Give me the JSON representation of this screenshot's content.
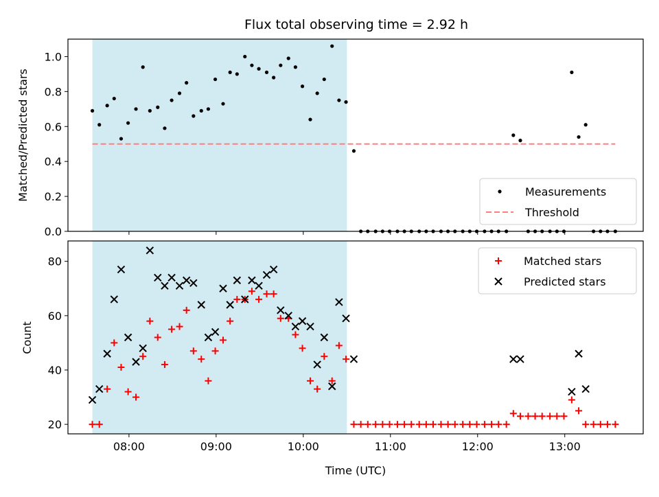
{
  "title": "Flux total observing time = 2.92 h",
  "colors": {
    "shade": "#add8e6",
    "threshold": "#ff7f7f",
    "measurement": "#000000",
    "matched": "#ff0000",
    "predicted": "#000000"
  },
  "chart_data": [
    {
      "type": "scatter",
      "panel": "top",
      "ylabel": "Matched/Predicted stars",
      "ylim": [
        0,
        1.1
      ],
      "yticks": [
        0.0,
        0.2,
        0.4,
        0.6,
        0.8,
        1.0
      ],
      "ytick_labels": [
        "0.0",
        "0.2",
        "0.4",
        "0.6",
        "0.8",
        "1.0"
      ],
      "xlim_hours": [
        7.3,
        13.9
      ],
      "shaded_span_hours": [
        7.58,
        10.5
      ],
      "threshold": {
        "name": "Threshold",
        "value": 0.5,
        "x_range_hours": [
          7.58,
          13.58
        ]
      },
      "legend": {
        "position": "lower-right",
        "entries": [
          "Measurements",
          "Threshold"
        ]
      },
      "series": [
        {
          "name": "Measurements",
          "x": [
            7.58,
            7.66,
            7.75,
            7.83,
            7.91,
            7.99,
            8.08,
            8.16,
            8.24,
            8.33,
            8.41,
            8.49,
            8.58,
            8.66,
            8.74,
            8.83,
            8.91,
            8.99,
            9.08,
            9.16,
            9.24,
            9.33,
            9.41,
            9.49,
            9.58,
            9.66,
            9.74,
            9.83,
            9.91,
            9.99,
            10.08,
            10.16,
            10.24,
            10.33,
            10.41,
            10.49,
            10.58,
            10.66,
            10.74,
            10.83,
            10.91,
            10.99,
            11.08,
            11.16,
            11.24,
            11.33,
            11.41,
            11.49,
            11.58,
            11.66,
            11.74,
            11.83,
            11.91,
            11.99,
            12.08,
            12.16,
            12.24,
            12.33,
            12.41,
            12.49,
            12.58,
            12.66,
            12.74,
            12.83,
            12.91,
            12.99,
            13.08,
            13.16,
            13.24,
            13.33,
            13.41,
            13.49,
            13.58
          ],
          "y": [
            0.69,
            0.61,
            0.72,
            0.76,
            0.53,
            0.62,
            0.7,
            0.94,
            0.69,
            0.71,
            0.59,
            0.75,
            0.79,
            0.85,
            0.66,
            0.69,
            0.7,
            0.87,
            0.73,
            0.91,
            0.9,
            1.0,
            0.95,
            0.93,
            0.91,
            0.88,
            0.95,
            0.99,
            0.94,
            0.83,
            0.64,
            0.79,
            0.87,
            1.06,
            0.75,
            0.74,
            0.46,
            0,
            0,
            0,
            0,
            0,
            0,
            0,
            0,
            0,
            0,
            0,
            0,
            0,
            0,
            0,
            0,
            0,
            0,
            0,
            0,
            0,
            0.55,
            0.52,
            0,
            0,
            0,
            0,
            0,
            0,
            0.91,
            0.54,
            0.61,
            0,
            0,
            0,
            0
          ]
        }
      ]
    },
    {
      "type": "scatter",
      "panel": "bottom",
      "xlabel": "Time (UTC)",
      "ylabel": "Count",
      "ylim": [
        16.5,
        87.5
      ],
      "yticks": [
        20,
        40,
        60,
        80
      ],
      "ytick_labels": [
        "20",
        "40",
        "60",
        "80"
      ],
      "xlim_hours": [
        7.3,
        13.9
      ],
      "xticks_hours": [
        8,
        9,
        10,
        11,
        12,
        13
      ],
      "xtick_labels": [
        "08:00",
        "09:00",
        "10:00",
        "11:00",
        "12:00",
        "13:00"
      ],
      "shaded_span_hours": [
        7.58,
        10.5
      ],
      "legend": {
        "position": "upper-right",
        "entries": [
          "Matched stars",
          "Predicted stars"
        ]
      },
      "series": [
        {
          "name": "Matched stars",
          "x": [
            7.58,
            7.66,
            7.75,
            7.83,
            7.91,
            7.99,
            8.08,
            8.16,
            8.24,
            8.33,
            8.41,
            8.49,
            8.58,
            8.66,
            8.74,
            8.83,
            8.91,
            8.99,
            9.08,
            9.16,
            9.24,
            9.33,
            9.41,
            9.49,
            9.58,
            9.66,
            9.74,
            9.83,
            9.91,
            9.99,
            10.08,
            10.16,
            10.24,
            10.33,
            10.41,
            10.49,
            10.58,
            10.66,
            10.74,
            10.83,
            10.91,
            10.99,
            11.08,
            11.16,
            11.24,
            11.33,
            11.41,
            11.49,
            11.58,
            11.66,
            11.74,
            11.83,
            11.91,
            11.99,
            12.08,
            12.16,
            12.24,
            12.33,
            12.41,
            12.49,
            12.58,
            12.66,
            12.74,
            12.83,
            12.91,
            12.99,
            13.08,
            13.16,
            13.24,
            13.33,
            13.41,
            13.49,
            13.58
          ],
          "y": [
            20,
            20,
            33,
            50,
            41,
            32,
            30,
            45,
            58,
            52,
            42,
            55,
            56,
            62,
            47,
            44,
            36,
            47,
            51,
            58,
            66,
            66,
            69,
            66,
            68,
            68,
            59,
            59,
            53,
            48,
            36,
            33,
            45,
            36,
            49,
            44,
            20,
            20,
            20,
            20,
            20,
            20,
            20,
            20,
            20,
            20,
            20,
            20,
            20,
            20,
            20,
            20,
            20,
            20,
            20,
            20,
            20,
            20,
            24,
            23,
            23,
            23,
            23,
            23,
            23,
            23,
            29,
            25,
            20,
            20,
            20,
            20,
            20
          ]
        },
        {
          "name": "Predicted stars",
          "x": [
            7.58,
            7.66,
            7.75,
            7.83,
            7.91,
            7.99,
            8.08,
            8.16,
            8.24,
            8.33,
            8.41,
            8.49,
            8.58,
            8.66,
            8.74,
            8.83,
            8.91,
            8.99,
            9.08,
            9.16,
            9.24,
            9.33,
            9.41,
            9.49,
            9.58,
            9.66,
            9.74,
            9.83,
            9.91,
            9.99,
            10.08,
            10.16,
            10.24,
            10.33,
            10.41,
            10.49,
            10.58,
            12.41,
            12.49,
            13.08,
            13.16,
            13.24
          ],
          "y": [
            29,
            33,
            46,
            66,
            77,
            52,
            43,
            48,
            84,
            74,
            71,
            74,
            71,
            73,
            72,
            64,
            52,
            54,
            70,
            64,
            73,
            66,
            73,
            71,
            75,
            77,
            62,
            60,
            56,
            58,
            56,
            42,
            52,
            34,
            65,
            59,
            44,
            44,
            44,
            32,
            46,
            33
          ]
        }
      ]
    }
  ]
}
